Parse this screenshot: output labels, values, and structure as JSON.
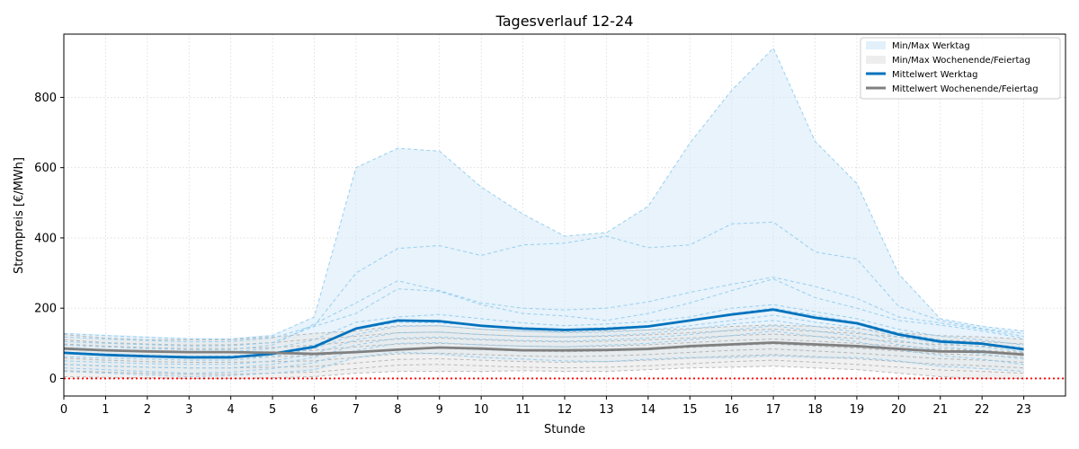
{
  "chart_data": {
    "type": "line",
    "title": "Tagesverlauf 12-24",
    "xlabel": "Stunde",
    "ylabel": "Strompreis [€/MWh]",
    "xlim": [
      0,
      24
    ],
    "ylim": [
      -50,
      980
    ],
    "x_ticks": [
      0,
      1,
      2,
      3,
      4,
      5,
      6,
      7,
      8,
      9,
      10,
      11,
      12,
      13,
      14,
      15,
      16,
      17,
      18,
      19,
      20,
      21,
      22,
      23
    ],
    "y_ticks": [
      0,
      200,
      400,
      600,
      800
    ],
    "grid": true,
    "legend_position": "top-right",
    "hours": [
      0,
      1,
      2,
      3,
      4,
      5,
      6,
      7,
      8,
      9,
      10,
      11,
      12,
      13,
      14,
      15,
      16,
      17,
      18,
      19,
      20,
      21,
      22,
      23
    ],
    "reference_line": {
      "y": 0,
      "color": "#ff0000",
      "style": "dotted"
    },
    "legend": [
      {
        "label": "Min/Max Werktag",
        "kind": "band",
        "color": "#d6eaf8"
      },
      {
        "label": "Min/Max Wochenende/Feiertag",
        "kind": "band",
        "color": "#e6e6e6"
      },
      {
        "label": "Mittelwert Werktag",
        "kind": "line",
        "color": "#0072bd"
      },
      {
        "label": "Mittelwert Wochenende/Feiertag",
        "kind": "line",
        "color": "#808080"
      }
    ],
    "bands": {
      "werktag": {
        "min": [
          20,
          15,
          10,
          5,
          8,
          15,
          20,
          55,
          70,
          65,
          55,
          50,
          48,
          45,
          50,
          55,
          55,
          60,
          55,
          55,
          45,
          30,
          25,
          20
        ],
        "max": [
          130,
          125,
          120,
          115,
          115,
          125,
          175,
          600,
          655,
          647,
          545,
          468,
          405,
          415,
          490,
          670,
          820,
          940,
          675,
          555,
          300,
          170,
          150,
          135
        ]
      },
      "wochenende": {
        "min": [
          5,
          3,
          2,
          0,
          0,
          2,
          5,
          15,
          20,
          20,
          20,
          22,
          20,
          20,
          25,
          30,
          32,
          35,
          30,
          25,
          15,
          5,
          0,
          0
        ],
        "max": [
          125,
          115,
          110,
          110,
          110,
          118,
          128,
          135,
          150,
          150,
          140,
          135,
          132,
          135,
          138,
          142,
          148,
          152,
          148,
          142,
          130,
          122,
          118,
          112
        ]
      }
    },
    "series": [
      {
        "name": "Mittelwert Werktag",
        "role": "mean",
        "group": "werktag",
        "color": "#0072bd",
        "values": [
          73,
          67,
          63,
          60,
          60,
          70,
          90,
          142,
          165,
          163,
          150,
          142,
          138,
          141,
          148,
          165,
          182,
          196,
          173,
          157,
          125,
          105,
          99,
          83
        ]
      },
      {
        "name": "Mittelwert Wochenende/Feiertag",
        "role": "mean",
        "group": "wochenende",
        "color": "#808080",
        "values": [
          85,
          80,
          77,
          75,
          75,
          73,
          70,
          75,
          82,
          88,
          85,
          80,
          80,
          81,
          84,
          92,
          97,
          102,
          97,
          92,
          84,
          77,
          76,
          68
        ]
      }
    ],
    "individual_days": {
      "werktag": [
        [
          128,
          122,
          117,
          113,
          112,
          122,
          175,
          600,
          655,
          647,
          545,
          468,
          405,
          415,
          490,
          670,
          820,
          940,
          675,
          555,
          298,
          170,
          148,
          135
        ],
        [
          118,
          112,
          108,
          104,
          105,
          115,
          150,
          300,
          370,
          378,
          350,
          380,
          385,
          405,
          372,
          380,
          440,
          445,
          360,
          340,
          205,
          165,
          142,
          128
        ],
        [
          95,
          90,
          85,
          82,
          82,
          95,
          155,
          215,
          278,
          250,
          215,
          200,
          195,
          200,
          218,
          245,
          268,
          288,
          262,
          228,
          175,
          158,
          140,
          120
        ],
        [
          105,
          100,
          96,
          92,
          93,
          102,
          148,
          185,
          255,
          248,
          210,
          185,
          178,
          165,
          185,
          215,
          250,
          283,
          230,
          200,
          165,
          152,
          135,
          115
        ],
        [
          88,
          82,
          78,
          75,
          76,
          85,
          110,
          160,
          175,
          182,
          170,
          158,
          150,
          155,
          162,
          175,
          200,
          210,
          190,
          170,
          140,
          120,
          110,
          95
        ],
        [
          75,
          70,
          66,
          63,
          64,
          72,
          95,
          140,
          160,
          158,
          150,
          145,
          140,
          145,
          150,
          165,
          185,
          200,
          180,
          160,
          130,
          110,
          100,
          88
        ],
        [
          62,
          58,
          55,
          52,
          52,
          62,
          85,
          125,
          148,
          150,
          140,
          135,
          130,
          132,
          138,
          150,
          165,
          180,
          160,
          145,
          118,
          100,
          90,
          76
        ],
        [
          50,
          46,
          42,
          40,
          40,
          50,
          70,
          110,
          130,
          132,
          125,
          120,
          118,
          122,
          128,
          140,
          155,
          165,
          148,
          132,
          108,
          90,
          80,
          65
        ],
        [
          40,
          36,
          32,
          30,
          30,
          40,
          60,
          95,
          115,
          118,
          112,
          108,
          106,
          110,
          115,
          125,
          138,
          150,
          135,
          120,
          96,
          80,
          70,
          55
        ],
        [
          30,
          25,
          20,
          15,
          18,
          28,
          45,
          80,
          100,
          102,
          95,
          92,
          90,
          95,
          100,
          110,
          122,
          135,
          120,
          105,
          82,
          65,
          55,
          40
        ],
        [
          20,
          15,
          10,
          5,
          8,
          15,
          25,
          60,
          75,
          70,
          60,
          55,
          50,
          48,
          55,
          60,
          60,
          65,
          60,
          60,
          50,
          35,
          28,
          20
        ]
      ],
      "wochenende": [
        [
          125,
          115,
          110,
          110,
          110,
          118,
          128,
          135,
          150,
          150,
          140,
          135,
          132,
          135,
          138,
          142,
          148,
          152,
          148,
          142,
          130,
          122,
          118,
          112
        ],
        [
          110,
          102,
          98,
          95,
          96,
          102,
          112,
          120,
          130,
          132,
          125,
          120,
          118,
          120,
          124,
          130,
          136,
          140,
          134,
          128,
          118,
          110,
          105,
          98
        ],
        [
          98,
          92,
          88,
          85,
          85,
          88,
          95,
          105,
          112,
          115,
          110,
          106,
          104,
          106,
          110,
          115,
          122,
          126,
          120,
          114,
          104,
          96,
          92,
          86
        ],
        [
          86,
          80,
          76,
          74,
          74,
          76,
          80,
          90,
          98,
          100,
          96,
          92,
          90,
          92,
          96,
          102,
          108,
          112,
          106,
          100,
          92,
          84,
          80,
          74
        ],
        [
          72,
          66,
          62,
          60,
          60,
          62,
          65,
          75,
          84,
          86,
          82,
          78,
          76,
          78,
          82,
          88,
          94,
          98,
          92,
          86,
          78,
          70,
          66,
          60
        ],
        [
          58,
          52,
          48,
          46,
          46,
          48,
          50,
          60,
          70,
          72,
          68,
          64,
          62,
          64,
          68,
          74,
          80,
          84,
          78,
          72,
          64,
          56,
          52,
          46
        ],
        [
          40,
          35,
          32,
          30,
          30,
          32,
          34,
          44,
          54,
          56,
          52,
          48,
          46,
          48,
          52,
          58,
          64,
          68,
          62,
          56,
          48,
          40,
          36,
          30
        ],
        [
          22,
          18,
          15,
          12,
          12,
          15,
          18,
          28,
          38,
          40,
          36,
          32,
          30,
          32,
          36,
          42,
          48,
          52,
          46,
          40,
          32,
          24,
          20,
          15
        ],
        [
          5,
          3,
          2,
          0,
          0,
          2,
          5,
          15,
          20,
          20,
          20,
          22,
          20,
          20,
          25,
          30,
          32,
          35,
          30,
          25,
          15,
          5,
          0,
          0
        ]
      ]
    }
  }
}
